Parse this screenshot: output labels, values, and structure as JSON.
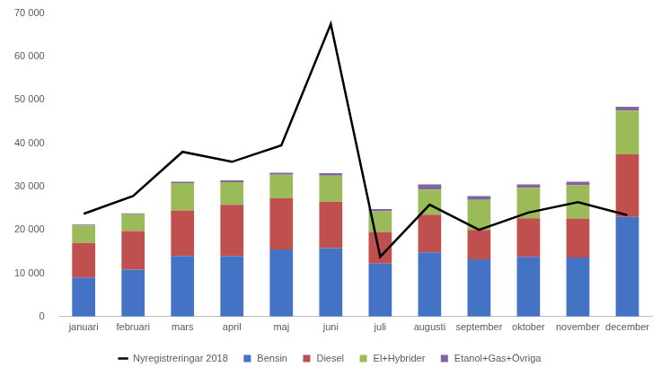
{
  "chart_data": {
    "type": "bar",
    "stacked": true,
    "grid": false,
    "legend": "bottom",
    "categories": [
      "januari",
      "februari",
      "mars",
      "april",
      "maj",
      "juni",
      "juli",
      "augusti",
      "september",
      "oktober",
      "november",
      "december"
    ],
    "ylim": [
      0,
      70000
    ],
    "yticks": [
      0,
      {
        "value": 10000,
        "label": "10 000"
      },
      {
        "value": 20000,
        "label": "20 000"
      },
      {
        "value": 30000,
        "label": "30 000"
      },
      {
        "value": 40000,
        "label": "40 000"
      },
      {
        "value": 50000,
        "label": "50 000"
      },
      {
        "value": 60000,
        "label": "60 000"
      },
      {
        "value": 70000,
        "label": "70 000"
      }
    ],
    "series": [
      {
        "name": "Bensin",
        "color": "#4472c4",
        "values": [
          9000,
          10800,
          14000,
          14000,
          15500,
          15800,
          12200,
          14800,
          13200,
          13800,
          13600,
          23000
        ]
      },
      {
        "name": "Diesel",
        "color": "#c0504d",
        "values": [
          8000,
          8900,
          10500,
          11800,
          11800,
          10700,
          7300,
          8700,
          6800,
          8900,
          9000,
          14400
        ]
      },
      {
        "name": "El+Hybrider",
        "color": "#9bbb59",
        "values": [
          4000,
          3900,
          6300,
          5200,
          5400,
          6000,
          4800,
          5800,
          6900,
          7000,
          7700,
          10100
        ]
      },
      {
        "name": "Etanol+Gas+Övriga",
        "color": "#8064a2",
        "values": [
          200,
          200,
          300,
          400,
          500,
          600,
          500,
          1200,
          900,
          800,
          800,
          900
        ]
      },
      {
        "name": "Nyregistreringar 2018",
        "color": "#000000",
        "type": "line",
        "values": [
          23700,
          27800,
          38000,
          35700,
          39500,
          67500,
          13800,
          25800,
          20000,
          24000,
          26400,
          23400
        ]
      }
    ]
  }
}
